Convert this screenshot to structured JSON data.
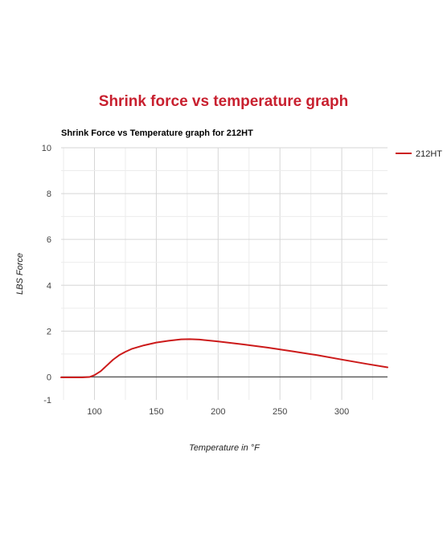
{
  "page": {
    "title": "Shrink force vs temperature graph"
  },
  "chart_data": {
    "type": "line",
    "title": "Shrink Force vs Temperature graph for 212HT",
    "xlabel": "Temperature in °F",
    "ylabel": "LBS Force",
    "xlim": [
      73,
      337
    ],
    "ylim": [
      -1,
      10
    ],
    "x_ticks": [
      100,
      150,
      200,
      250,
      300
    ],
    "y_ticks": [
      -1,
      0,
      2,
      4,
      6,
      8,
      10
    ],
    "grid": true,
    "legend_position": "right",
    "series": [
      {
        "name": "212HT",
        "color": "#cc1a1a",
        "x": [
          73,
          80,
          90,
          96,
          100,
          105,
          110,
          115,
          120,
          125,
          130,
          140,
          150,
          160,
          170,
          177,
          185,
          200,
          220,
          240,
          260,
          280,
          300,
          320,
          337
        ],
        "y": [
          -0.02,
          -0.02,
          -0.02,
          0.0,
          0.08,
          0.25,
          0.5,
          0.75,
          0.95,
          1.1,
          1.22,
          1.38,
          1.5,
          1.58,
          1.64,
          1.65,
          1.63,
          1.55,
          1.42,
          1.28,
          1.12,
          0.95,
          0.76,
          0.57,
          0.42
        ]
      }
    ]
  }
}
